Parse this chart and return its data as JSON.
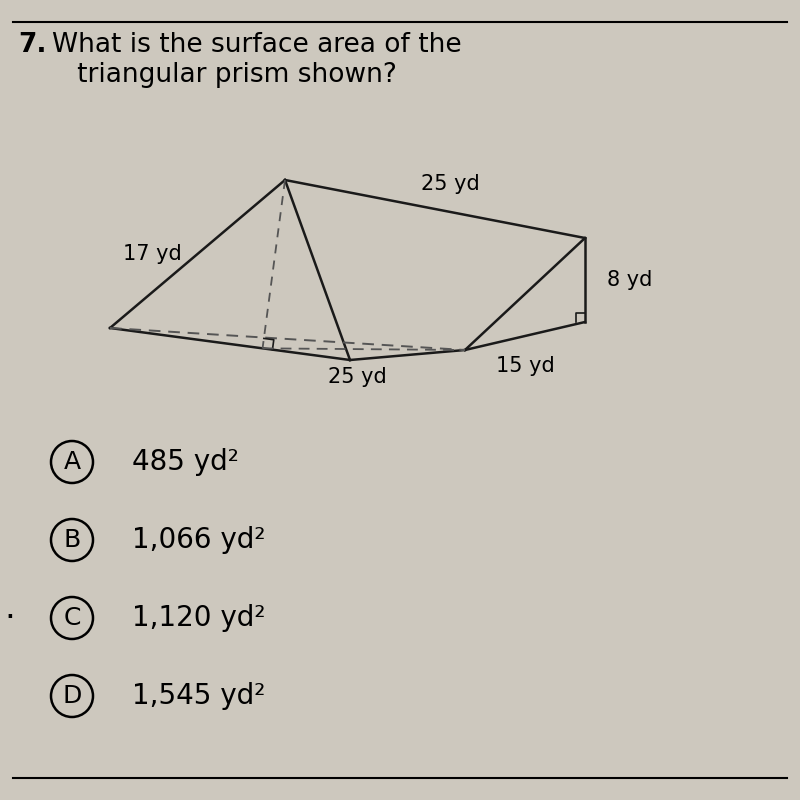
{
  "background_color": "#cdc8be",
  "title_number": "7.",
  "title_text": "What is the surface area of the\n   triangular prism shown?",
  "title_fontsize": 19,
  "choices": [
    {
      "letter": "A",
      "text": "485 yd²"
    },
    {
      "letter": "B",
      "text": "1,066 yd²"
    },
    {
      "letter": "C",
      "text": "1,120 yd²"
    },
    {
      "letter": "D",
      "text": "1,545 yd²"
    }
  ],
  "choice_fontsize": 20,
  "label_17yd": "17 yd",
  "label_25yd_top": "25 yd",
  "label_25yd_bottom": "25 yd",
  "label_8yd": "8 yd",
  "label_15yd": "15 yd",
  "line_color": "#1a1a1a",
  "dashed_color": "#555555"
}
